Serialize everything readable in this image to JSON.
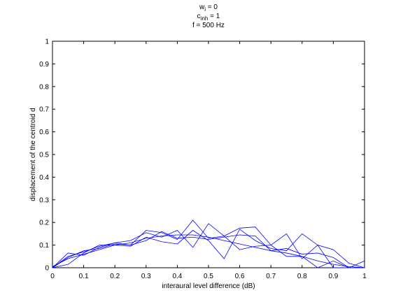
{
  "chart_data": {
    "type": "line",
    "title_lines": [
      {
        "base": "w",
        "sub": "i",
        "rest": " = 0"
      },
      {
        "base": "c",
        "sub": "inh",
        "rest": " = 1"
      },
      {
        "base": "f = 500 Hz",
        "sub": "",
        "rest": ""
      }
    ],
    "xlabel": "interaural level difference (dB)",
    "ylabel": "displacement of the centroid d",
    "xlim": [
      0,
      1
    ],
    "ylim": [
      0,
      1
    ],
    "xticks": [
      0,
      0.1,
      0.2,
      0.3,
      0.4,
      0.5,
      0.6,
      0.7,
      0.8,
      0.9,
      1
    ],
    "xtick_labels": [
      "0",
      "0.1",
      "0.2",
      "0.3",
      "0.4",
      "0.5",
      "0.6",
      "0.7",
      "0.8",
      "0.9",
      "1"
    ],
    "yticks": [
      0,
      0.1,
      0.2,
      0.3,
      0.4,
      0.5,
      0.6,
      0.7,
      0.8,
      0.9,
      1
    ],
    "ytick_labels": [
      "0",
      "0.1",
      "0.2",
      "0.3",
      "0.4",
      "0.5",
      "0.6",
      "0.7",
      "0.8",
      "0.9",
      "1"
    ],
    "grid": false,
    "line_color": "#0000ff",
    "x": [
      0,
      0.05,
      0.1,
      0.15,
      0.2,
      0.25,
      0.3,
      0.35,
      0.4,
      0.45,
      0.5,
      0.55,
      0.6,
      0.65,
      0.7,
      0.75,
      0.8,
      0.85,
      0.9,
      0.95,
      1
    ],
    "series": [
      {
        "values": [
          0.005,
          0.04,
          0.06,
          0.08,
          0.1,
          0.11,
          0.13,
          0.14,
          0.145,
          0.145,
          0.135,
          0.12,
          0.105,
          0.09,
          0.075,
          0.065,
          0.05,
          0.03,
          0.015,
          0.005,
          0.0
        ]
      },
      {
        "values": [
          0.0,
          0.065,
          0.055,
          0.09,
          0.11,
          0.1,
          0.165,
          0.155,
          0.125,
          0.21,
          0.13,
          0.14,
          0.08,
          0.095,
          0.1,
          0.15,
          0.04,
          0.1,
          0.08,
          0.02,
          0.0
        ]
      },
      {
        "values": [
          0.0,
          0.05,
          0.07,
          0.095,
          0.11,
          0.12,
          0.155,
          0.135,
          0.165,
          0.09,
          0.195,
          0.14,
          0.175,
          0.18,
          0.1,
          0.05,
          0.05,
          0.0,
          0.03,
          0.0,
          0.0
        ]
      },
      {
        "values": [
          0.0,
          0.015,
          0.065,
          0.1,
          0.1,
          0.095,
          0.135,
          0.115,
          0.105,
          0.165,
          0.12,
          0.04,
          0.17,
          0.12,
          0.085,
          0.075,
          0.15,
          0.1,
          0.0,
          0.0,
          0.03
        ]
      },
      {
        "values": [
          0.0,
          0.045,
          0.075,
          0.085,
          0.105,
          0.1,
          0.12,
          0.16,
          0.13,
          0.135,
          0.125,
          0.135,
          0.145,
          0.14,
          0.075,
          0.085,
          0.06,
          0.065,
          0.045,
          0.0,
          0.0
        ]
      }
    ]
  }
}
